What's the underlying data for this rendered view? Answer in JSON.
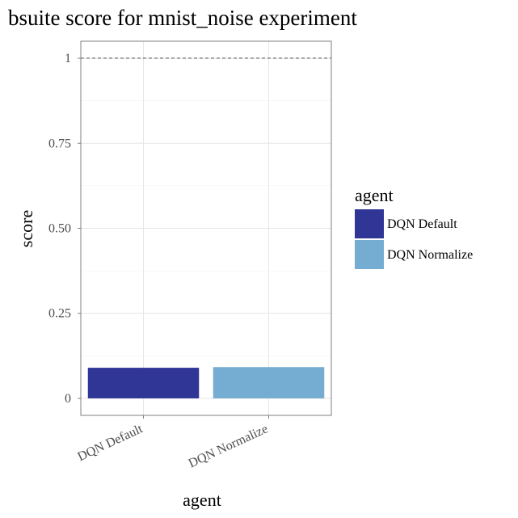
{
  "chart_data": {
    "type": "bar",
    "title": "bsuite score for mnist_noise experiment",
    "xlabel": "agent",
    "ylabel": "score",
    "categories": [
      "DQN Default",
      "DQN Normalize"
    ],
    "values": [
      0.09,
      0.092
    ],
    "colors": [
      "#303695",
      "#74add1"
    ],
    "ylim": [
      -0.05,
      1.05
    ],
    "yticks": [
      0,
      0.25,
      0.5,
      0.75,
      1
    ],
    "ytick_labels": [
      "0",
      "0.25",
      "0.50",
      "0.75",
      "1"
    ],
    "reference_line": 1,
    "grid": true,
    "legend": {
      "title": "agent",
      "position": "right",
      "entries": [
        "DQN Default",
        "DQN Normalize"
      ]
    }
  }
}
